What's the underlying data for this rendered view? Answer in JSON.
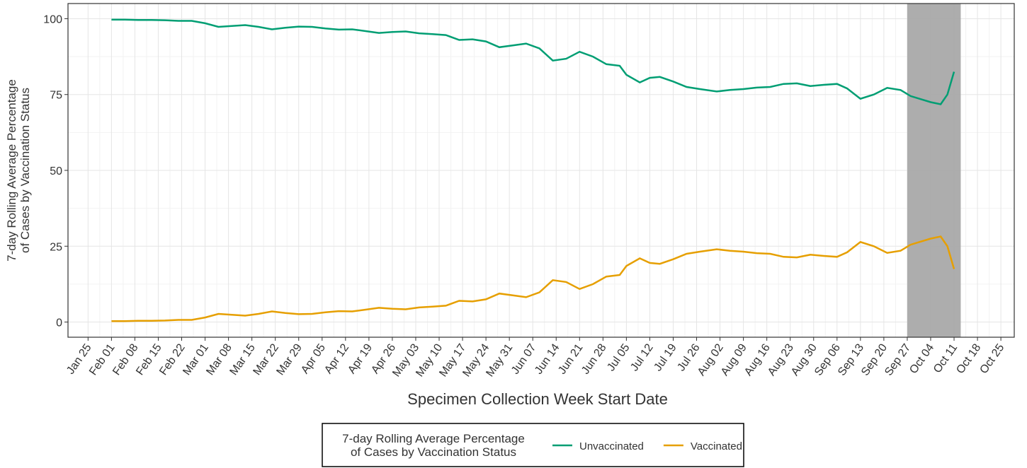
{
  "chart_data": {
    "type": "line",
    "ylabel": [
      "7-day Rolling Average Percentage",
      "of Cases by Vaccination Status"
    ],
    "xlabel": "Specimen Collection Week Start Date",
    "legend_title": [
      "7-day Rolling Average Percentage",
      "of Cases by Vaccination Status"
    ],
    "x": [
      "Feb 01",
      "Feb 05",
      "Feb 09",
      "Feb 13",
      "Feb 17",
      "Feb 21",
      "Feb 25",
      "Mar 01",
      "Mar 05",
      "Mar 09",
      "Mar 13",
      "Mar 17",
      "Mar 21",
      "Mar 25",
      "Mar 29",
      "Apr 02",
      "Apr 06",
      "Apr 10",
      "Apr 14",
      "Apr 18",
      "Apr 22",
      "Apr 26",
      "Apr 30",
      "May 04",
      "May 08",
      "May 12",
      "May 16",
      "May 20",
      "May 24",
      "May 28",
      "Jun 01",
      "Jun 05",
      "Jun 09",
      "Jun 13",
      "Jun 17",
      "Jun 21",
      "Jun 25",
      "Jun 29",
      "Jul 03",
      "Jul 05",
      "Jul 09",
      "Jul 12",
      "Jul 15",
      "Jul 19",
      "Jul 23",
      "Jul 27",
      "Aug 01",
      "Aug 05",
      "Aug 09",
      "Aug 13",
      "Aug 17",
      "Aug 21",
      "Aug 25",
      "Aug 29",
      "Sep 02",
      "Sep 06",
      "Sep 09",
      "Sep 13",
      "Sep 17",
      "Sep 21",
      "Sep 25",
      "Sep 28",
      "Oct 01",
      "Oct 04",
      "Oct 07",
      "Oct 09",
      "Oct 11"
    ],
    "series": [
      {
        "name": "Unvaccinated",
        "color": "#009e73",
        "values": [
          99.7,
          99.7,
          99.6,
          99.6,
          99.5,
          99.3,
          99.3,
          98.5,
          97.3,
          97.6,
          97.9,
          97.3,
          96.5,
          97.0,
          97.4,
          97.3,
          96.8,
          96.4,
          96.5,
          95.9,
          95.3,
          95.6,
          95.8,
          95.2,
          94.9,
          94.6,
          93.0,
          93.2,
          92.5,
          90.6,
          91.2,
          91.8,
          90.2,
          86.2,
          86.8,
          89.1,
          87.5,
          85.0,
          84.5,
          81.5,
          79.0,
          80.5,
          80.8,
          79.3,
          77.5,
          76.8,
          76.0,
          76.5,
          76.8,
          77.3,
          77.5,
          78.5,
          78.7,
          77.8,
          78.2,
          78.5,
          77.0,
          73.6,
          75.0,
          77.2,
          76.5,
          74.5,
          73.5,
          72.5,
          71.8,
          75.0,
          82.5
        ]
      },
      {
        "name": "Vaccinated",
        "color": "#e69f00",
        "values": [
          0.3,
          0.3,
          0.4,
          0.4,
          0.5,
          0.7,
          0.7,
          1.5,
          2.7,
          2.4,
          2.1,
          2.7,
          3.5,
          3.0,
          2.6,
          2.7,
          3.2,
          3.6,
          3.5,
          4.1,
          4.7,
          4.4,
          4.2,
          4.8,
          5.1,
          5.4,
          7.0,
          6.8,
          7.5,
          9.4,
          8.8,
          8.2,
          9.8,
          13.8,
          13.2,
          10.9,
          12.5,
          15.0,
          15.5,
          18.5,
          21.0,
          19.5,
          19.2,
          20.7,
          22.5,
          23.2,
          24.0,
          23.5,
          23.2,
          22.7,
          22.5,
          21.5,
          21.3,
          22.2,
          21.8,
          21.5,
          23.0,
          26.4,
          25.0,
          22.8,
          23.5,
          25.5,
          26.5,
          27.5,
          28.2,
          25.0,
          17.5
        ]
      }
    ],
    "xlim": [
      "Jan 19",
      "Oct 29"
    ],
    "xticks": [
      "Jan 25",
      "Feb 01",
      "Feb 08",
      "Feb 15",
      "Feb 22",
      "Mar 01",
      "Mar 08",
      "Mar 15",
      "Mar 22",
      "Mar 29",
      "Apr 05",
      "Apr 12",
      "Apr 19",
      "Apr 26",
      "May 03",
      "May 10",
      "May 17",
      "May 24",
      "May 31",
      "Jun 07",
      "Jun 14",
      "Jun 21",
      "Jun 28",
      "Jul 05",
      "Jul 12",
      "Jul 19",
      "Jul 26",
      "Aug 02",
      "Aug 09",
      "Aug 16",
      "Aug 23",
      "Aug 30",
      "Sep 06",
      "Sep 13",
      "Sep 20",
      "Sep 27",
      "Oct 04",
      "Oct 11",
      "Oct 18",
      "Oct 25"
    ],
    "ylim": [
      -5,
      105
    ],
    "yticks": [
      0,
      25,
      50,
      75,
      100
    ],
    "grid": true,
    "shade": [
      "Sep 27",
      "Oct 13"
    ],
    "shade_color": "#a9a9a9",
    "legend_position": "bottom"
  }
}
